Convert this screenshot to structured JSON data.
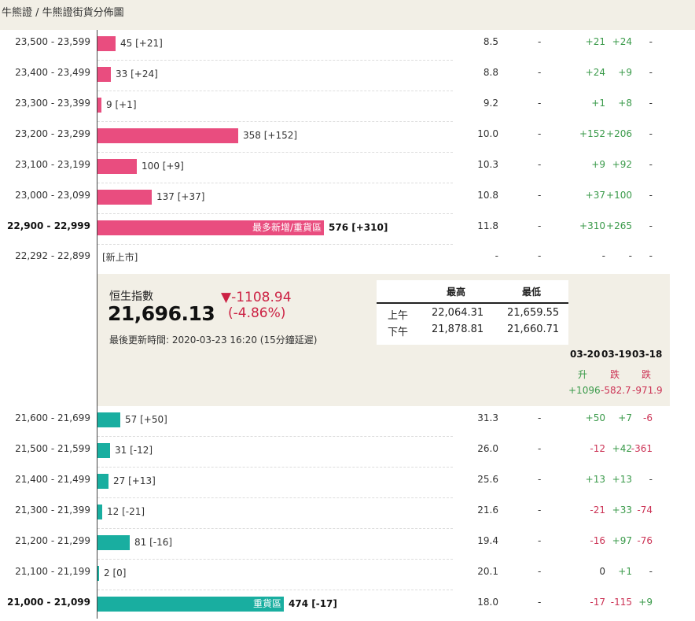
{
  "breadcrumb": "牛熊證 / 牛熊證街貨分佈圖",
  "upper_rows": [
    {
      "range": "23,500 - 23,599",
      "count": "45 [+21]",
      "ratio": "8.5",
      "dash": "-",
      "d1": "+21",
      "d2": "+24",
      "d3": "-",
      "bar_value": 45,
      "bold": false,
      "label": ""
    },
    {
      "range": "23,400 - 23,499",
      "count": "33 [+24]",
      "ratio": "8.8",
      "dash": "-",
      "d1": "+24",
      "d2": "+9",
      "d3": "-",
      "bar_value": 33,
      "bold": false,
      "label": ""
    },
    {
      "range": "23,300 - 23,399",
      "count": "9 [+1]",
      "ratio": "9.2",
      "dash": "-",
      "d1": "+1",
      "d2": "+8",
      "d3": "-",
      "bar_value": 9,
      "bold": false,
      "label": ""
    },
    {
      "range": "23,200 - 23,299",
      "count": "358 [+152]",
      "ratio": "10.0",
      "dash": "-",
      "d1": "+152",
      "d2": "+206",
      "d3": "-",
      "bar_value": 358,
      "bold": false,
      "label": ""
    },
    {
      "range": "23,100 - 23,199",
      "count": "100 [+9]",
      "ratio": "10.3",
      "dash": "-",
      "d1": "+9",
      "d2": "+92",
      "d3": "-",
      "bar_value": 100,
      "bold": false,
      "label": ""
    },
    {
      "range": "23,000 - 23,099",
      "count": "137 [+37]",
      "ratio": "10.8",
      "dash": "-",
      "d1": "+37",
      "d2": "+100",
      "d3": "-",
      "bar_value": 137,
      "bold": false,
      "label": ""
    },
    {
      "range": "22,900 - 22,999",
      "count": "576 [+310]",
      "ratio": "11.8",
      "dash": "-",
      "d1": "+310",
      "d2": "+265",
      "d3": "-",
      "bar_value": 576,
      "bold": true,
      "label": "最多新增/重貨區"
    }
  ],
  "new_row": {
    "range": "22,292 - 22,899",
    "label": "[新上市]",
    "ratio": "-",
    "dash": "-",
    "d1": "-",
    "d2": "-",
    "d3": "-"
  },
  "index": {
    "name": "恒生指數",
    "value": "21,696.13",
    "change": "▼-1108.94",
    "change_pct": "(-4.86%)",
    "updated": "最後更新時間: 2020-03-23 16:20 (15分鐘延遲)",
    "table": {
      "high_label": "最高",
      "low_label": "最低",
      "rows": [
        {
          "session": "上午",
          "high": "22,064.31",
          "low": "21,659.55"
        },
        {
          "session": "下午",
          "high": "21,878.81",
          "low": "21,660.71"
        }
      ]
    },
    "dates": [
      {
        "date": "03-20",
        "move": "升",
        "value": "+1096",
        "sign": "pos"
      },
      {
        "date": "03-19",
        "move": "跌",
        "value": "-582.7",
        "sign": "neg"
      },
      {
        "date": "03-18",
        "move": "跌",
        "value": "-971.9",
        "sign": "neg"
      }
    ]
  },
  "lower_rows": [
    {
      "range": "21,600 - 21,699",
      "count": "57 [+50]",
      "ratio": "31.3",
      "dash": "-",
      "d1": "+50",
      "d2": "+7",
      "d3": "-6",
      "bar_value": 57,
      "bold": false,
      "label": ""
    },
    {
      "range": "21,500 - 21,599",
      "count": "31 [-12]",
      "ratio": "26.0",
      "dash": "-",
      "d1": "-12",
      "d2": "+42",
      "d3": "-361",
      "bar_value": 31,
      "bold": false,
      "label": ""
    },
    {
      "range": "21,400 - 21,499",
      "count": "27 [+13]",
      "ratio": "25.6",
      "dash": "-",
      "d1": "+13",
      "d2": "+13",
      "d3": "-",
      "bar_value": 27,
      "bold": false,
      "label": ""
    },
    {
      "range": "21,300 - 21,399",
      "count": "12 [-21]",
      "ratio": "21.6",
      "dash": "-",
      "d1": "-21",
      "d2": "+33",
      "d3": "-74",
      "bar_value": 12,
      "bold": false,
      "label": ""
    },
    {
      "range": "21,200 - 21,299",
      "count": "81 [-16]",
      "ratio": "19.4",
      "dash": "-",
      "d1": "-16",
      "d2": "+97",
      "d3": "-76",
      "bar_value": 81,
      "bold": false,
      "label": ""
    },
    {
      "range": "21,100 - 21,199",
      "count": "2 [0]",
      "ratio": "20.1",
      "dash": "-",
      "d1": "0",
      "d2": "+1",
      "d3": "-",
      "bar_value": 2,
      "bold": false,
      "label": ""
    },
    {
      "range": "21,000 - 21,099",
      "count": "474 [-17]",
      "ratio": "18.0",
      "dash": "-",
      "d1": "-17",
      "d2": "-115",
      "d3": "+9",
      "bar_value": 474,
      "bold": true,
      "label": "重貨區"
    }
  ],
  "colors": {
    "bull": "#e94d7f",
    "bear": "#19aea0",
    "positive": "#3a9a4a",
    "negative": "#cc3355"
  }
}
